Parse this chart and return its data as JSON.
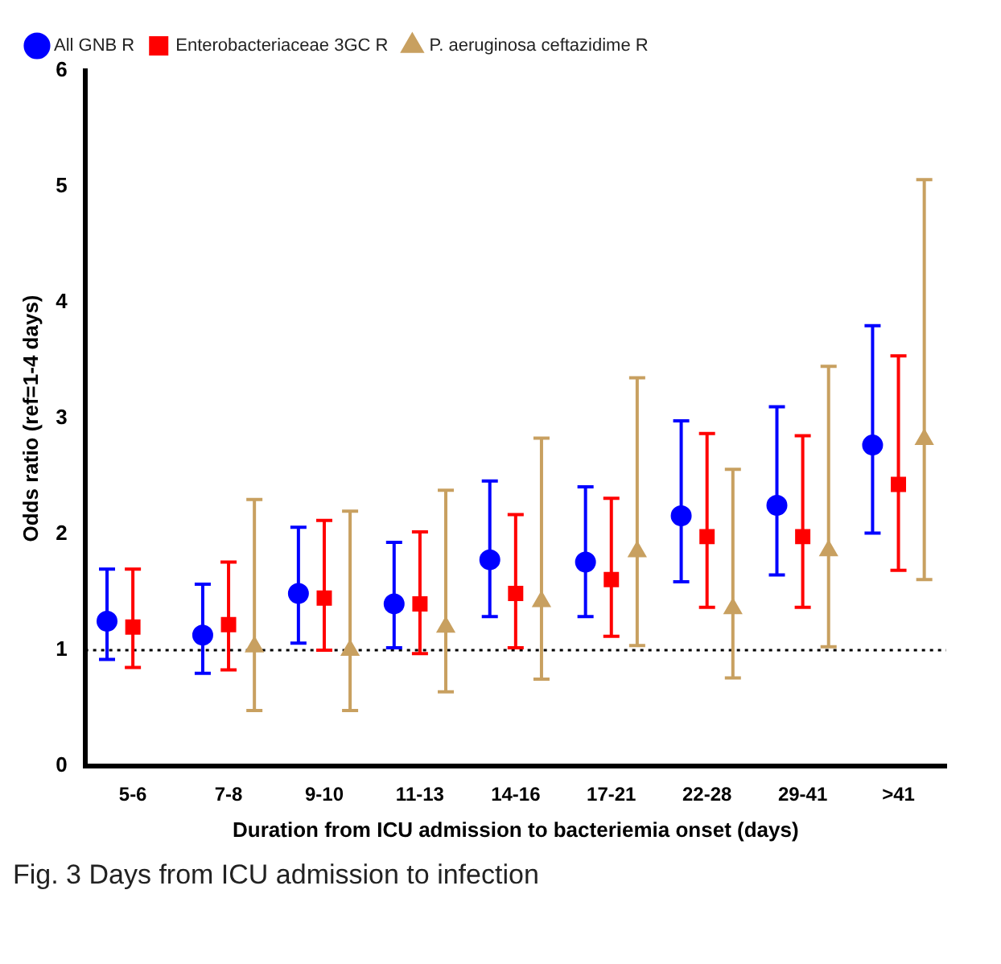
{
  "chart_data": {
    "type": "scatter",
    "xlabel": "Duration from ICU admission to bacteriemia onset (days)",
    "ylabel": "Odds ratio (ref=1-4 days)",
    "categories": [
      "5-6",
      "7-8",
      "9-10",
      "11-13",
      "14-16",
      "17-21",
      "22-28",
      "29-41",
      ">41"
    ],
    "series": [
      {
        "name": "All GNB R",
        "color": "#0000ff",
        "marker": "circle",
        "values": [
          1.25,
          1.13,
          1.49,
          1.4,
          1.78,
          1.76,
          2.16,
          2.25,
          2.77
        ],
        "errors": [
          [
            0.92,
            1.7
          ],
          [
            0.8,
            1.57
          ],
          [
            1.06,
            2.06
          ],
          [
            1.02,
            1.93
          ],
          [
            1.29,
            2.46
          ],
          [
            1.29,
            2.41
          ],
          [
            1.59,
            2.98
          ],
          [
            1.65,
            3.1
          ],
          [
            2.01,
            3.8
          ]
        ]
      },
      {
        "name": "Enterobacteriaceae 3GC R",
        "color": "#ff0000",
        "marker": "square",
        "values": [
          1.2,
          1.22,
          1.45,
          1.4,
          1.49,
          1.61,
          1.98,
          1.98,
          2.43
        ],
        "errors": [
          [
            0.85,
            1.7
          ],
          [
            0.83,
            1.76
          ],
          [
            1.0,
            2.12
          ],
          [
            0.97,
            2.02
          ],
          [
            1.02,
            2.17
          ],
          [
            1.12,
            2.31
          ],
          [
            1.37,
            2.87
          ],
          [
            1.37,
            2.85
          ],
          [
            1.69,
            3.54
          ]
        ]
      },
      {
        "name": "P. aeruginosa ceftazidime R",
        "color": "#c8a060",
        "marker": "triangle",
        "values": [
          null,
          1.03,
          1.0,
          1.2,
          1.42,
          1.85,
          1.36,
          1.86,
          2.82
        ],
        "errors": [
          null,
          [
            0.48,
            2.3
          ],
          [
            0.48,
            2.2
          ],
          [
            0.64,
            2.38
          ],
          [
            0.75,
            2.83
          ],
          [
            1.04,
            3.35
          ],
          [
            0.76,
            2.56
          ],
          [
            1.03,
            3.45
          ],
          [
            1.61,
            5.06
          ]
        ]
      }
    ],
    "ylim": [
      0,
      6
    ],
    "yticks": [
      0,
      1,
      2,
      3,
      4,
      5,
      6
    ],
    "grid": false,
    "legend": "top left",
    "ref_lines": [
      {
        "axis": "y",
        "value": 1,
        "line_style": "dotted",
        "color": "#000000"
      }
    ],
    "annotations": [
      "Fig. 3 Days from ICU admission to infection"
    ]
  }
}
